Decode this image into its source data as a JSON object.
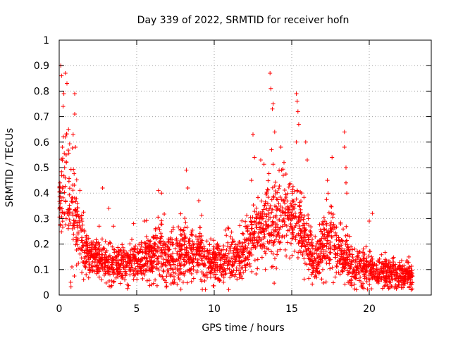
{
  "chart_data": {
    "type": "scatter",
    "title": "Day 339 of 2022, SRMTID for receiver hofn",
    "xlabel": "GPS time / hours",
    "ylabel": "SRMTID / TECUs",
    "xlim": [
      0,
      24
    ],
    "ylim": [
      0,
      1
    ],
    "xticks": [
      "0",
      "5",
      "10",
      "15",
      "20"
    ],
    "xtick_values": [
      0,
      5,
      10,
      15,
      20
    ],
    "yticks": [
      "0",
      "0.1",
      "0.2",
      "0.3",
      "0.4",
      "0.5",
      "0.6",
      "0.7",
      "0.8",
      "0.9",
      "1"
    ],
    "ytick_values": [
      0,
      0.1,
      0.2,
      0.3,
      0.4,
      0.5,
      0.6,
      0.7,
      0.8,
      0.9,
      1.0
    ],
    "grid": true,
    "marker": "+",
    "color": "#ff0000",
    "envelope": {
      "x": [
        0.0,
        0.3,
        0.6,
        1.0,
        1.3,
        1.7,
        2.0,
        3.0,
        4.0,
        5.0,
        6.0,
        6.5,
        7.0,
        8.0,
        9.0,
        10.0,
        11.0,
        12.0,
        12.5,
        13.0,
        13.5,
        14.0,
        14.5,
        15.0,
        15.5,
        16.0,
        16.5,
        17.0,
        17.5,
        18.0,
        18.5,
        19.0,
        20.0,
        21.0,
        22.0,
        22.8
      ],
      "center": [
        0.35,
        0.42,
        0.4,
        0.33,
        0.25,
        0.17,
        0.14,
        0.13,
        0.12,
        0.13,
        0.15,
        0.17,
        0.13,
        0.17,
        0.16,
        0.12,
        0.14,
        0.18,
        0.24,
        0.27,
        0.29,
        0.3,
        0.32,
        0.3,
        0.26,
        0.21,
        0.13,
        0.19,
        0.22,
        0.16,
        0.15,
        0.11,
        0.1,
        0.09,
        0.08,
        0.07
      ],
      "spread": [
        0.08,
        0.12,
        0.12,
        0.09,
        0.07,
        0.04,
        0.04,
        0.04,
        0.035,
        0.04,
        0.045,
        0.06,
        0.05,
        0.06,
        0.05,
        0.04,
        0.045,
        0.055,
        0.07,
        0.07,
        0.08,
        0.08,
        0.08,
        0.08,
        0.07,
        0.06,
        0.05,
        0.06,
        0.07,
        0.05,
        0.05,
        0.04,
        0.035,
        0.035,
        0.03,
        0.03
      ]
    },
    "outliers": [
      {
        "x": 0.1,
        "y": 0.9
      },
      {
        "x": 0.15,
        "y": 0.86
      },
      {
        "x": 0.4,
        "y": 0.87
      },
      {
        "x": 0.3,
        "y": 0.79
      },
      {
        "x": 0.5,
        "y": 0.83
      },
      {
        "x": 0.25,
        "y": 0.74
      },
      {
        "x": 0.6,
        "y": 0.65
      },
      {
        "x": 0.4,
        "y": 0.62
      },
      {
        "x": 1.0,
        "y": 0.79
      },
      {
        "x": 1.0,
        "y": 0.71
      },
      {
        "x": 0.9,
        "y": 0.63
      },
      {
        "x": 1.05,
        "y": 0.58
      },
      {
        "x": 0.2,
        "y": 0.58
      },
      {
        "x": 0.45,
        "y": 0.55
      },
      {
        "x": 0.35,
        "y": 0.5
      },
      {
        "x": 0.75,
        "y": 0.05
      },
      {
        "x": 2.8,
        "y": 0.42
      },
      {
        "x": 3.2,
        "y": 0.34
      },
      {
        "x": 3.5,
        "y": 0.27
      },
      {
        "x": 6.4,
        "y": 0.41
      },
      {
        "x": 6.6,
        "y": 0.4
      },
      {
        "x": 8.2,
        "y": 0.49
      },
      {
        "x": 8.3,
        "y": 0.42
      },
      {
        "x": 9.0,
        "y": 0.37
      },
      {
        "x": 4.8,
        "y": 0.28
      },
      {
        "x": 5.5,
        "y": 0.29
      },
      {
        "x": 12.5,
        "y": 0.63
      },
      {
        "x": 12.6,
        "y": 0.54
      },
      {
        "x": 12.4,
        "y": 0.45
      },
      {
        "x": 13.0,
        "y": 0.53
      },
      {
        "x": 13.6,
        "y": 0.87
      },
      {
        "x": 13.65,
        "y": 0.81
      },
      {
        "x": 13.8,
        "y": 0.75
      },
      {
        "x": 13.75,
        "y": 0.73
      },
      {
        "x": 13.9,
        "y": 0.64
      },
      {
        "x": 13.7,
        "y": 0.57
      },
      {
        "x": 14.3,
        "y": 0.58
      },
      {
        "x": 14.5,
        "y": 0.52
      },
      {
        "x": 15.3,
        "y": 0.79
      },
      {
        "x": 15.35,
        "y": 0.76
      },
      {
        "x": 15.4,
        "y": 0.72
      },
      {
        "x": 15.45,
        "y": 0.67
      },
      {
        "x": 15.3,
        "y": 0.6
      },
      {
        "x": 15.9,
        "y": 0.6
      },
      {
        "x": 16.0,
        "y": 0.53
      },
      {
        "x": 17.6,
        "y": 0.54
      },
      {
        "x": 17.3,
        "y": 0.45
      },
      {
        "x": 18.4,
        "y": 0.64
      },
      {
        "x": 18.4,
        "y": 0.58
      },
      {
        "x": 18.5,
        "y": 0.5
      },
      {
        "x": 18.5,
        "y": 0.44
      },
      {
        "x": 18.55,
        "y": 0.4
      },
      {
        "x": 20.2,
        "y": 0.32
      },
      {
        "x": 20.0,
        "y": 0.29
      },
      {
        "x": 16.8,
        "y": 0.09
      },
      {
        "x": 17.0,
        "y": 0.1
      },
      {
        "x": 13.3,
        "y": 0.1
      },
      {
        "x": 7.3,
        "y": 0.05
      },
      {
        "x": 3.5,
        "y": 0.05
      },
      {
        "x": 10.6,
        "y": 0.05
      }
    ]
  }
}
